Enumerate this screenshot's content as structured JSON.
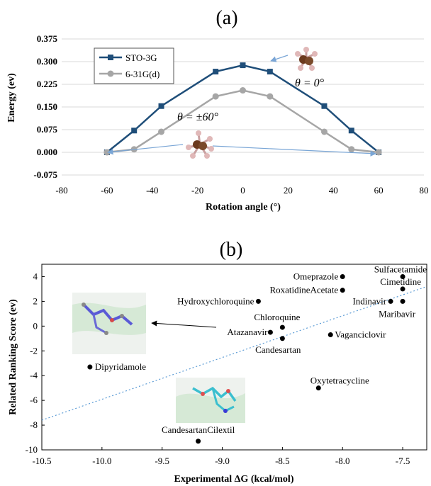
{
  "chart_data": [
    {
      "panel_label": "(a)",
      "type": "line",
      "xlabel": "Rotation angle (°)",
      "ylabel": "Energy (ev)",
      "xlim": [
        -80,
        80
      ],
      "ylim": [
        -0.075,
        0.375
      ],
      "xticks": [
        "-80",
        "-60",
        "-40",
        "-20",
        "0",
        "20",
        "40",
        "60",
        "80"
      ],
      "yticks": [
        "-0.075",
        "0.000",
        "0.075",
        "0.150",
        "0.225",
        "0.300",
        "0.375"
      ],
      "legend_position": "top-left",
      "annotations": [
        "θ = 0°",
        "θ = ±60°"
      ],
      "series": [
        {
          "name": "STO-3G",
          "color": "#1f4e79",
          "marker": "square",
          "x": [
            -60,
            -48,
            -36,
            -12,
            0,
            12,
            36,
            48,
            60
          ],
          "y": [
            0.0,
            0.072,
            0.153,
            0.267,
            0.288,
            0.267,
            0.153,
            0.072,
            0.0
          ]
        },
        {
          "name": "6-31G(d)",
          "color": "#a6a6a6",
          "marker": "circle",
          "x": [
            -60,
            -48,
            -36,
            -12,
            0,
            12,
            36,
            48,
            60
          ],
          "y": [
            0.0,
            0.01,
            0.068,
            0.185,
            0.205,
            0.185,
            0.068,
            0.01,
            0.0
          ]
        }
      ]
    },
    {
      "panel_label": "(b)",
      "type": "scatter",
      "xlabel": "Experimental ΔG (kcal/mol)",
      "ylabel": "Related Ranking Score (ev)",
      "xlim": [
        -10.5,
        -7.3
      ],
      "ylim": [
        -10,
        5
      ],
      "xticks": [
        "-10.5",
        "-10.0",
        "-9.5",
        "-9.0",
        "-8.5",
        "-8.0",
        "-7.5"
      ],
      "yticks": [
        "-10",
        "-8",
        "-6",
        "-4",
        "-2",
        "0",
        "2",
        "4"
      ],
      "trendline": {
        "x": [
          -10.5,
          -7.3
        ],
        "y": [
          -7.6,
          3.2
        ],
        "color": "#5b9bd5",
        "style": "dotted"
      },
      "points": [
        {
          "label": "Sulfacetamide",
          "x": -7.5,
          "y": 4.0
        },
        {
          "label": "Omeprazole",
          "x": -8.0,
          "y": 4.0
        },
        {
          "label": "Cimetidine",
          "x": -7.5,
          "y": 3.0
        },
        {
          "label": "RoxatidineAcetate",
          "x": -8.0,
          "y": 2.9
        },
        {
          "label": "Indinavir",
          "x": -7.6,
          "y": 2.0
        },
        {
          "label": "Maribavir",
          "x": -7.5,
          "y": 2.0
        },
        {
          "label": "Hydroxychloroquine",
          "x": -8.7,
          "y": 2.0
        },
        {
          "label": "Chloroquine",
          "x": -8.5,
          "y": -0.1
        },
        {
          "label": "Atazanavir",
          "x": -8.6,
          "y": -0.5
        },
        {
          "label": "Candesartan",
          "x": -8.5,
          "y": -1.0
        },
        {
          "label": "Vaganciclovir",
          "x": -8.1,
          "y": -0.7
        },
        {
          "label": "Dipyridamole",
          "x": -10.1,
          "y": -3.3
        },
        {
          "label": "Oxytetracycline",
          "x": -8.2,
          "y": -5.0
        },
        {
          "label": "CandesartanCilextil",
          "x": -9.2,
          "y": -9.3
        }
      ]
    }
  ]
}
